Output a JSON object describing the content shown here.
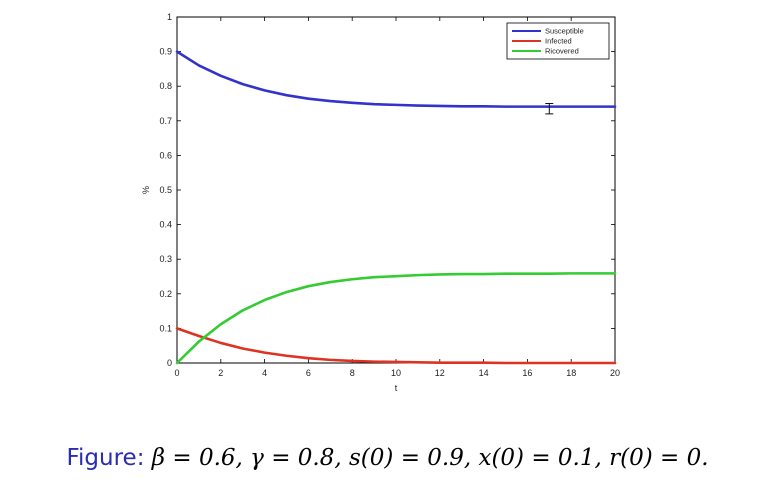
{
  "chart_data": {
    "type": "line",
    "title": "",
    "xlabel": "t",
    "ylabel": "%",
    "xlim": [
      0,
      20
    ],
    "ylim": [
      0,
      1
    ],
    "x_ticks": [
      0,
      2,
      4,
      6,
      8,
      10,
      12,
      14,
      16,
      18,
      20
    ],
    "y_ticks": [
      0,
      0.1,
      0.2,
      0.3,
      0.4,
      0.5,
      0.6,
      0.7,
      0.8,
      0.9,
      1
    ],
    "x_tick_labels": [
      "0",
      "2",
      "4",
      "6",
      "8",
      "10",
      "12",
      "14",
      "16",
      "18",
      "20"
    ],
    "y_tick_labels": [
      "0",
      "0.1",
      "0.2",
      "0.3",
      "0.4",
      "0.5",
      "0.6",
      "0.7",
      "0.8",
      "0.9",
      "1"
    ],
    "grid": false,
    "legend_position": "top-right",
    "x": [
      0,
      1,
      2,
      3,
      4,
      5,
      6,
      7,
      8,
      9,
      10,
      11,
      12,
      13,
      14,
      15,
      16,
      17,
      18,
      19,
      20
    ],
    "series": [
      {
        "name": "Susceptible",
        "color": "#3333cc",
        "values": [
          0.9,
          0.86,
          0.83,
          0.806,
          0.788,
          0.774,
          0.764,
          0.757,
          0.752,
          0.748,
          0.746,
          0.744,
          0.743,
          0.742,
          0.742,
          0.741,
          0.741,
          0.741,
          0.741,
          0.741,
          0.741
        ]
      },
      {
        "name": "Infected",
        "color": "#dd3322",
        "values": [
          0.1,
          0.078,
          0.058,
          0.042,
          0.03,
          0.021,
          0.014,
          0.009,
          0.006,
          0.004,
          0.003,
          0.002,
          0.001,
          0.001,
          0.001,
          0.0,
          0.0,
          0.0,
          0.0,
          0.0,
          0.0
        ]
      },
      {
        "name": "Ricovered",
        "color": "#33cc33",
        "values": [
          0.0,
          0.062,
          0.112,
          0.152,
          0.182,
          0.205,
          0.222,
          0.234,
          0.242,
          0.248,
          0.251,
          0.254,
          0.256,
          0.257,
          0.257,
          0.258,
          0.258,
          0.258,
          0.259,
          0.259,
          0.259
        ]
      }
    ],
    "annotations": [
      {
        "type": "error_bar",
        "x": 17,
        "y": 0.735,
        "ymin": 0.72,
        "ymax": 0.75
      }
    ]
  },
  "caption": {
    "label": "Figure:",
    "text": "β = 0.6, γ = 0.8, s(0) = 0.9, x(0) = 0.1, r(0) = 0."
  }
}
